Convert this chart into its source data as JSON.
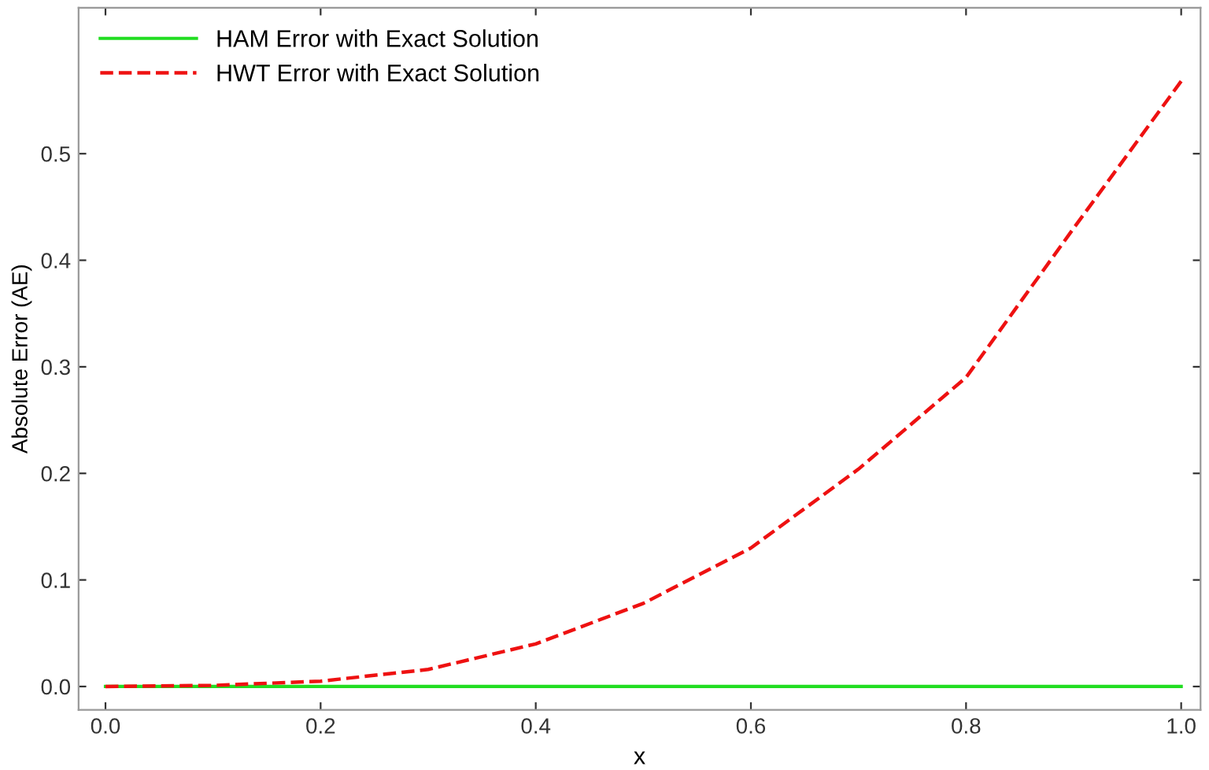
{
  "chart_data": {
    "type": "line",
    "xlabel": "x",
    "ylabel": "Absolute Error (AE)",
    "x": [
      0.0,
      0.1,
      0.2,
      0.3,
      0.4,
      0.5,
      0.6,
      0.7,
      0.8,
      0.9,
      1.0
    ],
    "series": [
      {
        "name": "HAM Error with Exact Solution",
        "color": "#22dd22",
        "line_style": "solid",
        "values": [
          0,
          0,
          0,
          0,
          0,
          0,
          0,
          0,
          0,
          0,
          0
        ]
      },
      {
        "name": "HWT Error with Exact Solution",
        "color": "#ee1111",
        "line_style": "dashed",
        "values": [
          0,
          0.001,
          0.005,
          0.016,
          0.04,
          0.078,
          0.13,
          0.204,
          0.29,
          0.43,
          0.568
        ]
      }
    ],
    "xlim": [
      -0.025,
      1.018
    ],
    "ylim": [
      -0.022,
      0.637
    ],
    "xticks": [
      {
        "value": 0.0,
        "label": "0.0"
      },
      0.2,
      0.4,
      0.6,
      0.8,
      {
        "value": 1.0,
        "label": "1.0"
      }
    ],
    "yticks": [
      {
        "value": 0.0,
        "label": "0.0"
      },
      0.1,
      0.2,
      0.3,
      0.4,
      0.5
    ],
    "grid": false,
    "legend": "top left",
    "marker": "none"
  }
}
